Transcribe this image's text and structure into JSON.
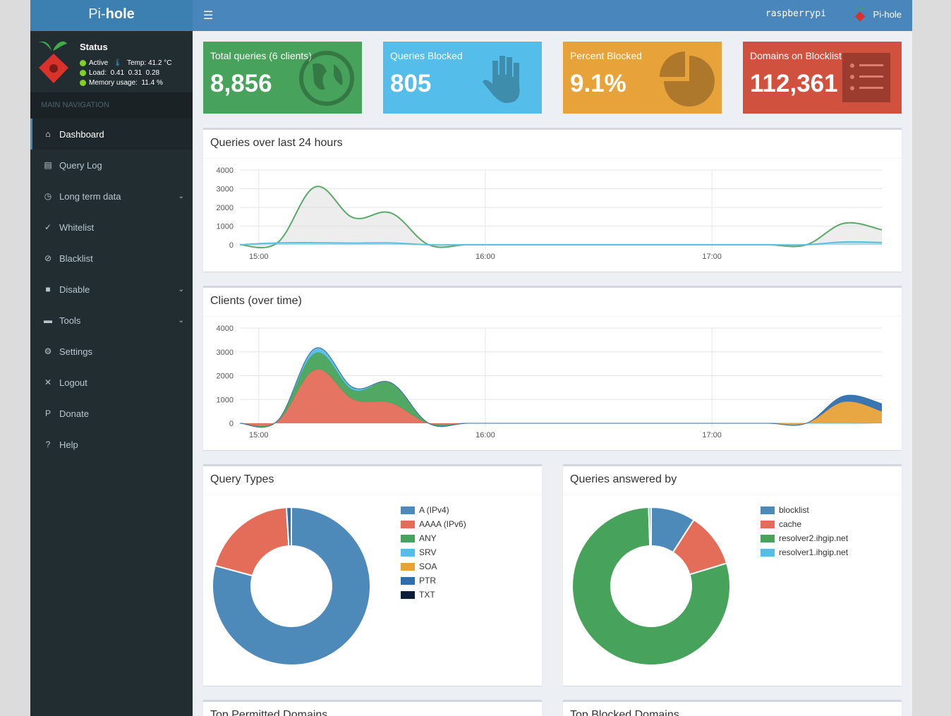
{
  "app": {
    "logo_light": "Pi-",
    "logo_bold": "hole",
    "hostname": "raspberrypi",
    "header_brand": "Pi-hole"
  },
  "status": {
    "title": "Status",
    "active": "Active",
    "temp": "Temp: 41.2 °C",
    "load": "Load:  0.41  0.31  0.28",
    "memory": "Memory usage:  11.4 %"
  },
  "sidebar": {
    "header": "MAIN NAVIGATION",
    "items": [
      {
        "label": "Dashboard",
        "icon": "home-icon",
        "active": true
      },
      {
        "label": "Query Log",
        "icon": "file-icon"
      },
      {
        "label": "Long term data",
        "icon": "clock-icon",
        "expandable": true
      },
      {
        "label": "Whitelist",
        "icon": "check-circle-icon"
      },
      {
        "label": "Blacklist",
        "icon": "ban-icon"
      },
      {
        "label": "Disable",
        "icon": "stop-icon",
        "expandable": true
      },
      {
        "label": "Tools",
        "icon": "folder-icon",
        "expandable": true
      },
      {
        "label": "Settings",
        "icon": "gears-icon"
      },
      {
        "label": "Logout",
        "icon": "user-times-icon"
      },
      {
        "label": "Donate",
        "icon": "paypal-icon"
      },
      {
        "label": "Help",
        "icon": "question-circle-icon"
      }
    ]
  },
  "stats": [
    {
      "label": "Total queries (6 clients)",
      "value": "8,856",
      "color": "#47a35b",
      "icon": "globe-icon"
    },
    {
      "label": "Queries Blocked",
      "value": "805",
      "color": "#55bde9",
      "icon": "hand-icon"
    },
    {
      "label": "Percent Blocked",
      "value": "9.1%",
      "color": "#e8a23a",
      "icon": "pie-chart-icon"
    },
    {
      "label": "Domains on Blocklist",
      "value": "112,361",
      "color": "#d1513f",
      "icon": "list-icon"
    }
  ],
  "chart_data": [
    {
      "type": "area",
      "title": "Queries over last 24 hours",
      "x": [
        "14:55",
        "15:05",
        "15:15",
        "15:25",
        "15:35",
        "15:45",
        "15:55",
        "16:05",
        "16:15",
        "16:25",
        "16:35",
        "16:45",
        "16:55",
        "17:05",
        "17:15",
        "17:25",
        "17:35",
        "17:45"
      ],
      "xticks": [
        "15:00",
        "16:00",
        "17:00"
      ],
      "ylim": [
        0,
        4000
      ],
      "yticks": [
        0,
        1000,
        2000,
        3000,
        4000
      ],
      "grid": true,
      "series": [
        {
          "values": [
            0,
            120,
            3100,
            1450,
            1700,
            0,
            0,
            0,
            0,
            0,
            0,
            0,
            0,
            0,
            0,
            0,
            1150,
            800
          ],
          "color": "#5aa96a",
          "fill": "rgba(220,220,220,0.5)"
        },
        {
          "values": [
            0,
            100,
            110,
            90,
            100,
            0,
            0,
            0,
            0,
            0,
            0,
            0,
            0,
            0,
            0,
            0,
            150,
            120
          ],
          "color": "#5bc0de",
          "fill": "rgba(91,192,222,0.4)"
        }
      ]
    },
    {
      "type": "stacked-area",
      "title": "Clients (over time)",
      "x": [
        "14:55",
        "15:05",
        "15:15",
        "15:25",
        "15:35",
        "15:45",
        "15:55",
        "16:05",
        "16:15",
        "16:25",
        "16:35",
        "16:45",
        "16:55",
        "17:05",
        "17:15",
        "17:25",
        "17:35",
        "17:45"
      ],
      "xticks": [
        "15:00",
        "16:00",
        "17:00"
      ],
      "ylim": [
        0,
        4000
      ],
      "yticks": [
        0,
        1000,
        2000,
        3000,
        4000
      ],
      "grid": true,
      "series": [
        {
          "values": [
            0,
            80,
            2250,
            1000,
            850,
            0,
            0,
            0,
            0,
            0,
            0,
            0,
            0,
            0,
            0,
            0,
            0,
            20
          ],
          "color": "#e46d5a"
        },
        {
          "values": [
            0,
            20,
            700,
            400,
            850,
            0,
            0,
            0,
            0,
            0,
            0,
            0,
            0,
            0,
            0,
            0,
            0,
            0
          ],
          "color": "#47a35b"
        },
        {
          "values": [
            0,
            10,
            200,
            100,
            0,
            0,
            0,
            0,
            0,
            0,
            0,
            0,
            0,
            0,
            0,
            0,
            0,
            0
          ],
          "color": "#55bde9"
        },
        {
          "values": [
            0,
            0,
            0,
            0,
            0,
            0,
            0,
            0,
            0,
            0,
            0,
            0,
            0,
            0,
            0,
            0,
            900,
            480
          ],
          "color": "#e8a23a"
        },
        {
          "values": [
            0,
            0,
            0,
            0,
            0,
            0,
            0,
            0,
            0,
            0,
            0,
            0,
            0,
            0,
            0,
            0,
            250,
            320
          ],
          "color": "#2f6fae"
        }
      ]
    },
    {
      "type": "pie",
      "title": "Query Types",
      "labels": [
        "A (IPv4)",
        "AAAA (IPv6)",
        "ANY",
        "SRV",
        "SOA",
        "PTR",
        "TXT"
      ],
      "values": [
        79.2,
        19.8,
        0,
        0,
        0,
        1.0,
        0
      ],
      "colors": [
        "#4e8ab9",
        "#e46d5a",
        "#47a35b",
        "#55bde9",
        "#e8a23a",
        "#2f6fae",
        "#0b1f3a"
      ]
    },
    {
      "type": "pie",
      "title": "Queries answered by",
      "labels": [
        "blocklist",
        "cache",
        "resolver2.ihgip.net",
        "resolver1.ihgip.net"
      ],
      "values": [
        9.1,
        11.2,
        79.2,
        0.5
      ],
      "colors": [
        "#4e8ab9",
        "#e46d5a",
        "#47a35b",
        "#55bde9"
      ]
    }
  ],
  "bottom": {
    "permitted_title": "Top Permitted Domains",
    "blocked_title": "Top Blocked Domains"
  }
}
